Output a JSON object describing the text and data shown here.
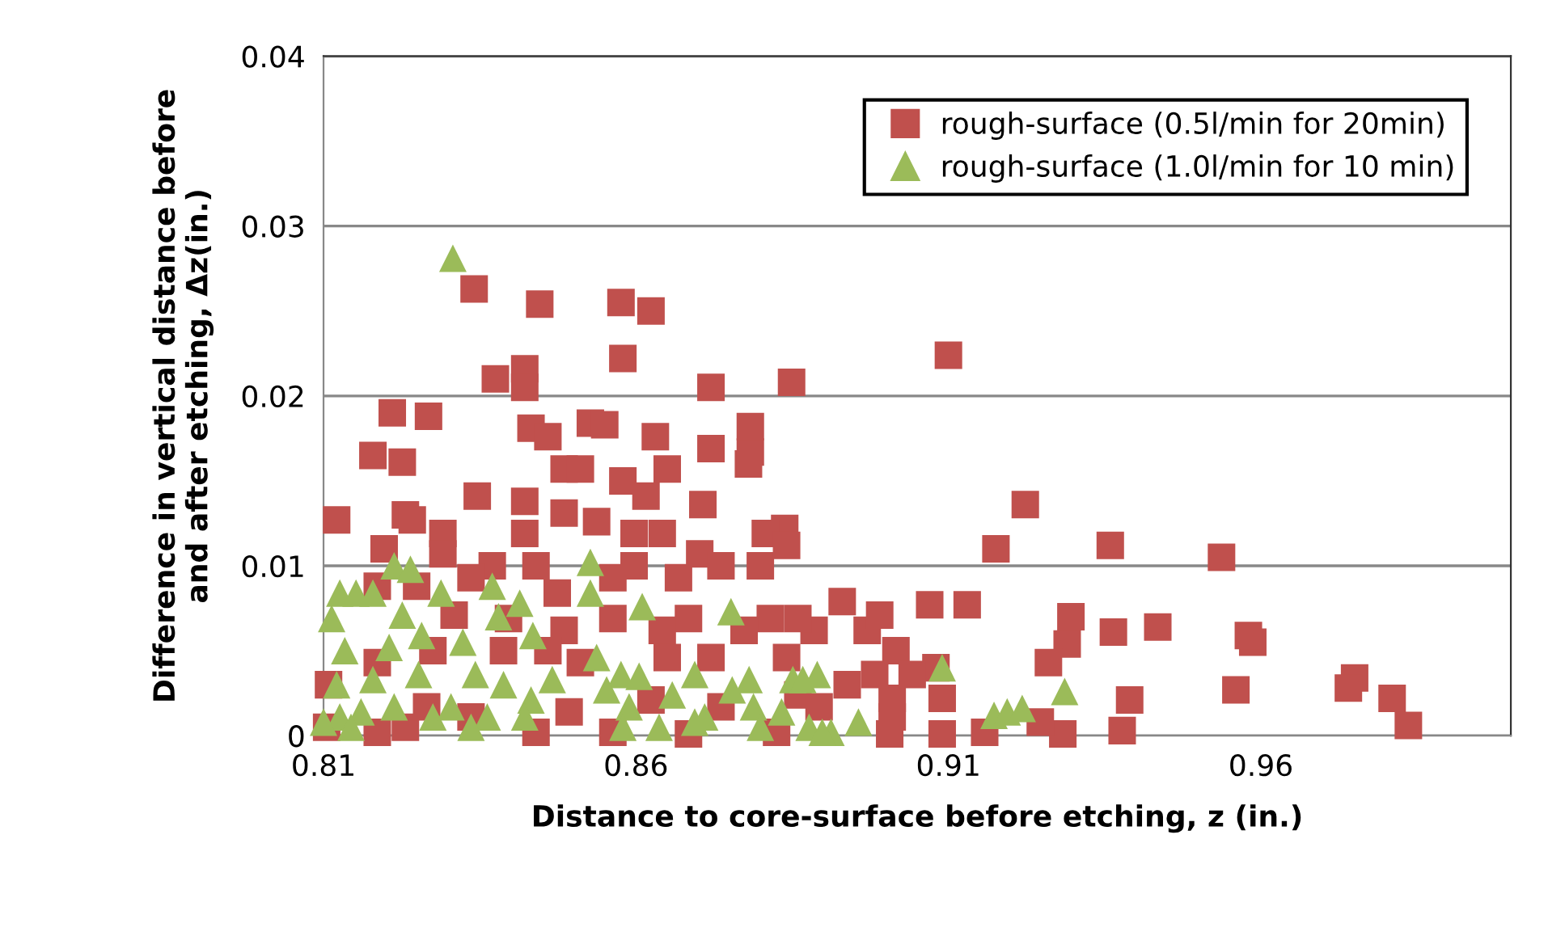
{
  "chart_data": {
    "type": "scatter",
    "xlabel": "Distance to core-surface before etching, z (in.)",
    "ylabel": "Difference in vertical distance before\nand after etching, Δz(in.)",
    "xlim": [
      0.81,
      1.0
    ],
    "ylim": [
      0,
      0.04
    ],
    "xticks": [
      0.81,
      0.86,
      0.91,
      0.96
    ],
    "yticks": [
      0,
      0.01,
      0.02,
      0.03,
      0.04
    ],
    "grid": "y",
    "legend": "top right",
    "series": [
      {
        "name": "rough-surface (0.5l/min for 20min)",
        "color": "#c0504d",
        "marker": "square",
        "x": [
          0.8121,
          0.8179,
          0.821,
          0.8226,
          0.8268,
          0.8341,
          0.8346,
          0.8375,
          0.8422,
          0.8422,
          0.8446,
          0.8432,
          0.8459,
          0.8527,
          0.855,
          0.8576,
          0.8579,
          0.8624,
          0.8631,
          0.872,
          0.8783,
          0.878,
          0.8849,
          0.91,
          0.9176,
          0.9223,
          0.9359,
          0.9537,
          0.893,
          0.907,
          0.913,
          0.9296,
          0.929,
          0.926,
          0.9364,
          0.9435,
          0.9587,
          0.958,
          0.956,
          0.939,
          0.9378,
          0.9283,
          0.9247,
          0.9158,
          0.909,
          0.909,
          0.908,
          0.975,
          0.974,
          0.981,
          0.9836,
          0.9016,
          0.901,
          0.9006,
          0.897,
          0.8231,
          0.8242,
          0.8291,
          0.872,
          0.8783,
          0.865,
          0.8707,
          0.8838,
          0.8807,
          0.8485,
          0.8511,
          0.8422,
          0.8579,
          0.8616,
          0.8597,
          0.8642,
          0.8537,
          0.8485,
          0.8422,
          0.837,
          0.8336,
          0.8291,
          0.8249,
          0.8186,
          0.8108,
          0.8105,
          0.8186,
          0.8231,
          0.844,
          0.8474,
          0.8563,
          0.8597,
          0.8668,
          0.8702,
          0.8736,
          0.8799,
          0.8841,
          0.8885,
          0.8859,
          0.8815,
          0.8773,
          0.8684,
          0.8642,
          0.8563,
          0.8485,
          0.8459,
          0.8511,
          0.865,
          0.872,
          0.8841,
          0.8859,
          0.8893,
          0.8736,
          0.8624,
          0.8493,
          0.844,
          0.8563,
          0.8684,
          0.8825,
          0.8336,
          0.8265,
          0.8388,
          0.8396,
          0.8309,
          0.8275,
          0.8186,
          0.8197,
          0.899,
          0.8982,
          0.9042,
          0.8938,
          0.901
        ],
        "values": [
          0.0127,
          0.0165,
          0.019,
          0.0161,
          0.0188,
          0.0263,
          0.0141,
          0.021,
          0.0216,
          0.0205,
          0.0254,
          0.0181,
          0.0176,
          0.0184,
          0.0183,
          0.0255,
          0.0222,
          0.025,
          0.0176,
          0.0205,
          0.0167,
          0.016,
          0.0208,
          0.0224,
          0.011,
          0.0136,
          0.0112,
          0.0105,
          0.0079,
          0.0077,
          0.0077,
          0.007,
          0.0054,
          0.0043,
          0.0061,
          0.0064,
          0.0055,
          0.0059,
          0.0027,
          0.0021,
          0.0003,
          0.0001,
          0.0008,
          0.0002,
          0.0001,
          0.0022,
          0.004,
          0.0034,
          0.0028,
          0.0022,
          0.0006,
          0.005,
          0.0022,
          0.0001,
          0.0062,
          0.013,
          0.0127,
          0.0119,
          0.0169,
          0.0182,
          0.0157,
          0.0136,
          0.0122,
          0.0119,
          0.0157,
          0.0157,
          0.0138,
          0.015,
          0.0141,
          0.0119,
          0.0119,
          0.0126,
          0.0131,
          0.0119,
          0.01,
          0.0093,
          0.0107,
          0.0088,
          0.0088,
          0.003,
          0.0005,
          0.0002,
          0.0005,
          0.01,
          0.0084,
          0.0093,
          0.01,
          0.0093,
          0.0107,
          0.01,
          0.01,
          0.0112,
          0.0062,
          0.0069,
          0.0069,
          0.0062,
          0.0069,
          0.0062,
          0.0069,
          0.0062,
          0.005,
          0.0043,
          0.0046,
          0.0046,
          0.0046,
          0.0024,
          0.0017,
          0.0017,
          0.0021,
          0.0014,
          0.0002,
          0.0002,
          0.0001,
          0.0002,
          0.0011,
          0.0017,
          0.005,
          0.0069,
          0.0071,
          0.005,
          0.0043,
          0.011,
          0.0071,
          0.0036,
          0.0036,
          0.003,
          0.0011
        ]
      },
      {
        "name": "rough-surface (1.0l/min for 10 min)",
        "color": "#9bbb59",
        "marker": "triangle",
        "x": [
          0.909,
          0.9173,
          0.9194,
          0.9218,
          0.9286,
          0.8956,
          0.8912,
          0.889,
          0.8307,
          0.8213,
          0.8239,
          0.8527,
          0.8527,
          0.8288,
          0.837,
          0.838,
          0.8414,
          0.8435,
          0.861,
          0.8752,
          0.8126,
          0.8152,
          0.8179,
          0.8113,
          0.8226,
          0.8257,
          0.8323,
          0.8134,
          0.8205,
          0.8537,
          0.8576,
          0.8605,
          0.8694,
          0.8781,
          0.8851,
          0.8466,
          0.8388,
          0.8343,
          0.8252,
          0.8179,
          0.8121,
          0.8126,
          0.816,
          0.8213,
          0.8275,
          0.8304,
          0.8362,
          0.8336,
          0.8432,
          0.8422,
          0.8553,
          0.8589,
          0.8579,
          0.8637,
          0.8658,
          0.8694,
          0.871,
          0.8754,
          0.8788,
          0.8799,
          0.8833,
          0.8867,
          0.8877,
          0.8898,
          0.81,
          0.8144
        ],
        "values": [
          0.004,
          0.0012,
          0.0014,
          0.0016,
          0.0026,
          0.0008,
          0.0002,
          0.0036,
          0.0281,
          0.01,
          0.0098,
          0.0102,
          0.0084,
          0.0084,
          0.0088,
          0.007,
          0.0078,
          0.0059,
          0.0076,
          0.0073,
          0.0084,
          0.0084,
          0.0084,
          0.0069,
          0.0071,
          0.0059,
          0.0055,
          0.005,
          0.0052,
          0.0046,
          0.0036,
          0.0035,
          0.0036,
          0.0033,
          0.0033,
          0.0033,
          0.003,
          0.0036,
          0.0036,
          0.0033,
          0.003,
          0.0011,
          0.0014,
          0.0017,
          0.0011,
          0.0017,
          0.0011,
          0.0005,
          0.0021,
          0.0011,
          0.0027,
          0.0017,
          0.0005,
          0.0005,
          0.0024,
          0.0008,
          0.0011,
          0.0027,
          0.0017,
          0.0005,
          0.0014,
          0.0033,
          0.0005,
          0.0002,
          0.0008,
          0.0005
        ]
      }
    ]
  }
}
